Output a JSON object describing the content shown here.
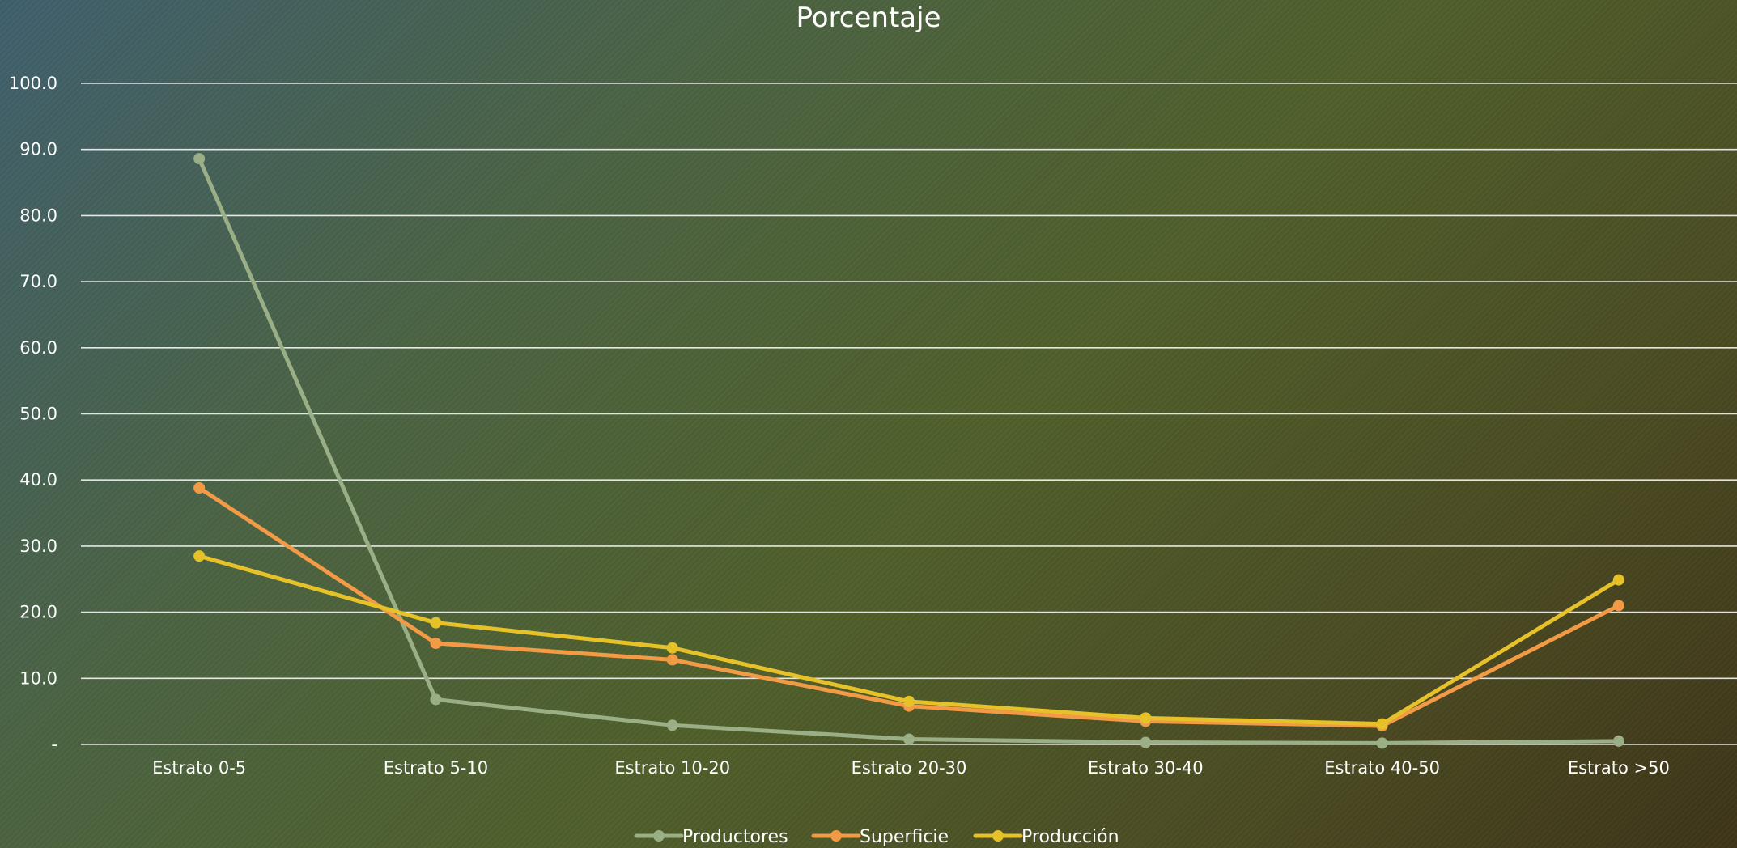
{
  "chart_data": {
    "type": "line",
    "title": "Porcentaje",
    "categories": [
      "Estrato 0-5",
      "Estrato 5-10",
      "Estrato 10-20",
      "Estrato 20-30",
      "Estrato 30-40",
      "Estrato 40-50",
      "Estrato >50"
    ],
    "series": [
      {
        "name": "Productores",
        "color": "#9aaf86",
        "values": [
          88.6,
          6.8,
          2.9,
          0.8,
          0.3,
          0.2,
          0.5
        ]
      },
      {
        "name": "Superficie",
        "color": "#f29a45",
        "values": [
          38.8,
          15.3,
          12.8,
          5.8,
          3.5,
          2.8,
          21.0
        ]
      },
      {
        "name": "Producción",
        "color": "#e6c12a",
        "values": [
          28.5,
          18.4,
          14.6,
          6.5,
          4.0,
          3.1,
          24.9
        ]
      }
    ],
    "ylim": [
      0,
      100
    ],
    "yticks": [
      0,
      10,
      20,
      30,
      40,
      50,
      60,
      70,
      80,
      90,
      100
    ],
    "ytick_labels": [
      "-",
      "10.0",
      "20.0",
      "30.0",
      "40.0",
      "50.0",
      "60.0",
      "70.0",
      "80.0",
      "90.0",
      "100.0"
    ],
    "xlabel": "",
    "ylabel": "",
    "grid": true,
    "legend_position": "bottom"
  }
}
